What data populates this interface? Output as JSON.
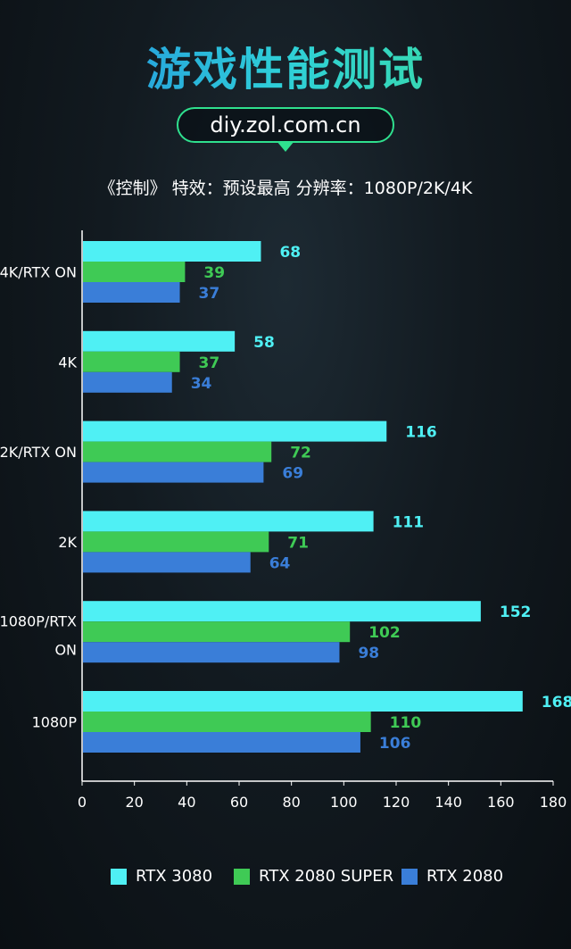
{
  "header": {
    "title": "游戏性能测试",
    "url": "diy.zol.com.cn",
    "subtitle": "《控制》 特效：预设最高 分辨率：1080P/2K/4K"
  },
  "colors": {
    "rtx3080": "#4ff0f4",
    "rtx2080super": "#3fca55",
    "rtx2080": "#3a7ed8"
  },
  "chart_data": {
    "type": "bar",
    "orientation": "horizontal",
    "categories": [
      "4K/RTX ON",
      "4K",
      "2K/RTX ON",
      "2K",
      "1080P/RTX ON",
      "1080P"
    ],
    "series": [
      {
        "name": "RTX 3080",
        "values": [
          68,
          58,
          116,
          111,
          152,
          168
        ]
      },
      {
        "name": "RTX 2080 SUPER",
        "values": [
          39,
          37,
          72,
          71,
          102,
          110
        ]
      },
      {
        "name": "RTX 2080",
        "values": [
          37,
          34,
          69,
          64,
          98,
          106
        ]
      }
    ],
    "xlim": [
      0,
      180
    ],
    "xticks": [
      0,
      20,
      40,
      60,
      80,
      100,
      120,
      140,
      160,
      180
    ],
    "legend_position": "bottom"
  }
}
